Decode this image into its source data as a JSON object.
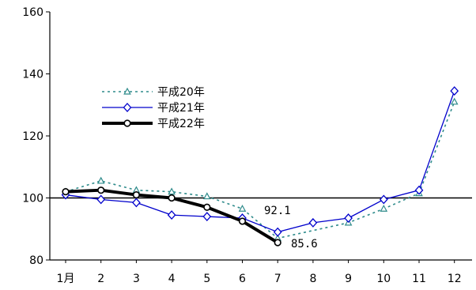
{
  "chart_data": {
    "type": "line",
    "title": "",
    "xlabel": "",
    "ylabel": "",
    "categories": [
      "1月",
      "2",
      "3",
      "4",
      "5",
      "6",
      "7",
      "8",
      "9",
      "10",
      "11",
      "12"
    ],
    "ylim": [
      80,
      160
    ],
    "yticks": [
      80,
      100,
      120,
      140,
      160
    ],
    "reference_line": 100,
    "grid": false,
    "legend_position": "upper-left",
    "series": [
      {
        "name": "平成20年",
        "color": "#2e8b8b",
        "style": "dotted",
        "marker": "triangle-open",
        "values": [
          102.0,
          105.5,
          102.5,
          102.0,
          100.5,
          96.5,
          87.0,
          null,
          92.0,
          96.5,
          101.5,
          131.0
        ]
      },
      {
        "name": "平成21年",
        "color": "#0000cc",
        "style": "solid",
        "marker": "diamond-open",
        "values": [
          101.0,
          99.5,
          98.5,
          94.5,
          94.0,
          93.5,
          89.0,
          92.0,
          93.5,
          99.5,
          102.5,
          134.5
        ]
      },
      {
        "name": "平成22年",
        "color": "#000000",
        "style": "bold",
        "marker": "circle-open",
        "values": [
          102.0,
          102.5,
          101.0,
          100.0,
          97.0,
          92.5,
          85.6,
          null,
          null,
          null,
          null,
          null
        ]
      }
    ],
    "annotations": [
      {
        "text": "92.1",
        "category_index": 6,
        "value": 92.1
      },
      {
        "text": "85.6",
        "category_index": 6,
        "value": 85.6
      }
    ]
  }
}
